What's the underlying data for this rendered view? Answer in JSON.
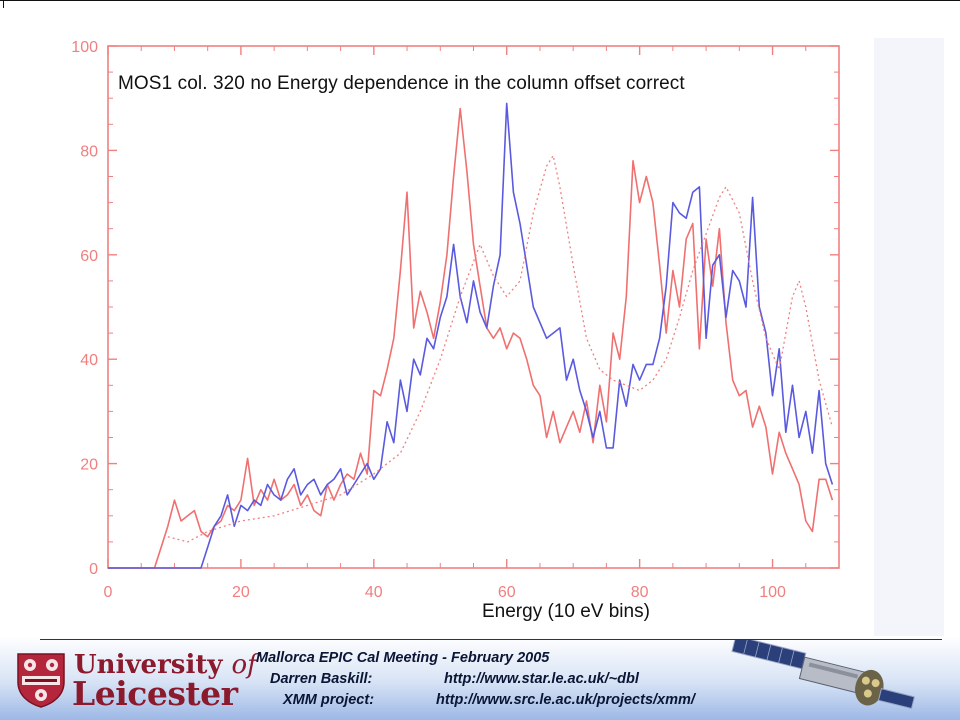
{
  "chart_data": {
    "type": "line",
    "title": "MOS1 col. 320 no Energy dependence in the column offset correct",
    "xlabel": "Energy (10 eV bins)",
    "ylabel": "",
    "xlim": [
      0,
      110
    ],
    "ylim": [
      0,
      100
    ],
    "x_ticks": [
      0,
      20,
      40,
      60,
      80,
      100
    ],
    "y_ticks": [
      0,
      20,
      40,
      60,
      80,
      100
    ],
    "grid": false,
    "legend": "none",
    "series": [
      {
        "color": "#f07070",
        "style": "solid",
        "points": [
          [
            0,
            0
          ],
          [
            7,
            0
          ],
          [
            8,
            4
          ],
          [
            9,
            8
          ],
          [
            10,
            13
          ],
          [
            11,
            9
          ],
          [
            12,
            10
          ],
          [
            13,
            11
          ],
          [
            14,
            7
          ],
          [
            15,
            6
          ],
          [
            16,
            8
          ],
          [
            17,
            9
          ],
          [
            18,
            12
          ],
          [
            19,
            11
          ],
          [
            20,
            13
          ],
          [
            21,
            21
          ],
          [
            22,
            12
          ],
          [
            23,
            15
          ],
          [
            24,
            13
          ],
          [
            25,
            17
          ],
          [
            26,
            13
          ],
          [
            27,
            14
          ],
          [
            28,
            16
          ],
          [
            29,
            12
          ],
          [
            30,
            14
          ],
          [
            31,
            11
          ],
          [
            32,
            10
          ],
          [
            33,
            16
          ],
          [
            34,
            13
          ],
          [
            35,
            16
          ],
          [
            36,
            18
          ],
          [
            37,
            17
          ],
          [
            38,
            22
          ],
          [
            39,
            18
          ],
          [
            40,
            34
          ],
          [
            41,
            33
          ],
          [
            42,
            38
          ],
          [
            43,
            44
          ],
          [
            44,
            57
          ],
          [
            45,
            72
          ],
          [
            46,
            46
          ],
          [
            47,
            53
          ],
          [
            48,
            49
          ],
          [
            49,
            44
          ],
          [
            50,
            51
          ],
          [
            51,
            60
          ],
          [
            52,
            75
          ],
          [
            53,
            88
          ],
          [
            54,
            76
          ],
          [
            55,
            62
          ],
          [
            56,
            54
          ],
          [
            57,
            46
          ],
          [
            58,
            44
          ],
          [
            59,
            46
          ],
          [
            60,
            42
          ],
          [
            61,
            45
          ],
          [
            62,
            44
          ],
          [
            63,
            40
          ],
          [
            64,
            35
          ],
          [
            65,
            33
          ],
          [
            66,
            25
          ],
          [
            67,
            30
          ],
          [
            68,
            24
          ],
          [
            69,
            27
          ],
          [
            70,
            30
          ],
          [
            71,
            26
          ],
          [
            72,
            32
          ],
          [
            73,
            24
          ],
          [
            74,
            35
          ],
          [
            75,
            28
          ],
          [
            76,
            45
          ],
          [
            77,
            40
          ],
          [
            78,
            52
          ],
          [
            79,
            78
          ],
          [
            80,
            70
          ],
          [
            81,
            75
          ],
          [
            82,
            70
          ],
          [
            83,
            58
          ],
          [
            84,
            45
          ],
          [
            85,
            57
          ],
          [
            86,
            50
          ],
          [
            87,
            63
          ],
          [
            88,
            66
          ],
          [
            89,
            42
          ],
          [
            90,
            63
          ],
          [
            91,
            54
          ],
          [
            92,
            65
          ],
          [
            93,
            47
          ],
          [
            94,
            36
          ],
          [
            95,
            33
          ],
          [
            96,
            34
          ],
          [
            97,
            27
          ],
          [
            98,
            31
          ],
          [
            99,
            27
          ],
          [
            100,
            18
          ],
          [
            101,
            26
          ],
          [
            102,
            22
          ],
          [
            103,
            19
          ],
          [
            104,
            16
          ],
          [
            105,
            9
          ],
          [
            106,
            7
          ],
          [
            107,
            17
          ],
          [
            108,
            17
          ],
          [
            109,
            13
          ]
        ]
      },
      {
        "color": "#5a5ae0",
        "style": "solid",
        "points": [
          [
            0,
            0
          ],
          [
            14,
            0
          ],
          [
            15,
            4
          ],
          [
            16,
            8
          ],
          [
            17,
            10
          ],
          [
            18,
            14
          ],
          [
            19,
            8
          ],
          [
            20,
            12
          ],
          [
            21,
            11
          ],
          [
            22,
            13
          ],
          [
            23,
            12
          ],
          [
            24,
            16
          ],
          [
            25,
            14
          ],
          [
            26,
            13
          ],
          [
            27,
            17
          ],
          [
            28,
            19
          ],
          [
            29,
            14
          ],
          [
            30,
            16
          ],
          [
            31,
            17
          ],
          [
            32,
            14
          ],
          [
            33,
            16
          ],
          [
            34,
            17
          ],
          [
            35,
            19
          ],
          [
            36,
            14
          ],
          [
            37,
            16
          ],
          [
            38,
            18
          ],
          [
            39,
            20
          ],
          [
            40,
            17
          ],
          [
            41,
            19
          ],
          [
            42,
            28
          ],
          [
            43,
            24
          ],
          [
            44,
            36
          ],
          [
            45,
            30
          ],
          [
            46,
            40
          ],
          [
            47,
            37
          ],
          [
            48,
            44
          ],
          [
            49,
            42
          ],
          [
            50,
            48
          ],
          [
            51,
            52
          ],
          [
            52,
            62
          ],
          [
            53,
            52
          ],
          [
            54,
            47
          ],
          [
            55,
            55
          ],
          [
            56,
            49
          ],
          [
            57,
            46
          ],
          [
            58,
            54
          ],
          [
            59,
            60
          ],
          [
            60,
            89
          ],
          [
            61,
            72
          ],
          [
            62,
            66
          ],
          [
            63,
            58
          ],
          [
            64,
            50
          ],
          [
            65,
            47
          ],
          [
            66,
            44
          ],
          [
            67,
            45
          ],
          [
            68,
            46
          ],
          [
            69,
            36
          ],
          [
            70,
            40
          ],
          [
            71,
            34
          ],
          [
            72,
            30
          ],
          [
            73,
            25
          ],
          [
            74,
            30
          ],
          [
            75,
            23
          ],
          [
            76,
            23
          ],
          [
            77,
            36
          ],
          [
            78,
            31
          ],
          [
            79,
            39
          ],
          [
            80,
            36
          ],
          [
            81,
            39
          ],
          [
            82,
            39
          ],
          [
            83,
            44
          ],
          [
            84,
            54
          ],
          [
            85,
            70
          ],
          [
            86,
            68
          ],
          [
            87,
            67
          ],
          [
            88,
            72
          ],
          [
            89,
            73
          ],
          [
            90,
            44
          ],
          [
            91,
            58
          ],
          [
            92,
            60
          ],
          [
            93,
            48
          ],
          [
            94,
            57
          ],
          [
            95,
            55
          ],
          [
            96,
            50
          ],
          [
            97,
            71
          ],
          [
            98,
            50
          ],
          [
            99,
            45
          ],
          [
            100,
            33
          ],
          [
            101,
            42
          ],
          [
            102,
            26
          ],
          [
            103,
            35
          ],
          [
            104,
            25
          ],
          [
            105,
            30
          ],
          [
            106,
            22
          ],
          [
            107,
            34
          ],
          [
            108,
            20
          ],
          [
            109,
            16
          ]
        ]
      },
      {
        "color": "#f08080",
        "style": "dotted",
        "points": [
          [
            9,
            6
          ],
          [
            12,
            5
          ],
          [
            15,
            7
          ],
          [
            20,
            9
          ],
          [
            25,
            10
          ],
          [
            30,
            12
          ],
          [
            35,
            14
          ],
          [
            40,
            18
          ],
          [
            44,
            22
          ],
          [
            47,
            30
          ],
          [
            50,
            40
          ],
          [
            53,
            52
          ],
          [
            56,
            62
          ],
          [
            58,
            56
          ],
          [
            60,
            52
          ],
          [
            62,
            55
          ],
          [
            64,
            68
          ],
          [
            66,
            77
          ],
          [
            67,
            79
          ],
          [
            68,
            73
          ],
          [
            70,
            58
          ],
          [
            72,
            44
          ],
          [
            74,
            38
          ],
          [
            76,
            36
          ],
          [
            78,
            35
          ],
          [
            80,
            34
          ],
          [
            82,
            36
          ],
          [
            84,
            40
          ],
          [
            86,
            48
          ],
          [
            88,
            57
          ],
          [
            90,
            64
          ],
          [
            92,
            71
          ],
          [
            93,
            73
          ],
          [
            95,
            68
          ],
          [
            97,
            55
          ],
          [
            99,
            44
          ],
          [
            101,
            38
          ],
          [
            102,
            45
          ],
          [
            103,
            52
          ],
          [
            104,
            55
          ],
          [
            105,
            50
          ],
          [
            107,
            36
          ],
          [
            109,
            27
          ]
        ]
      }
    ]
  },
  "footer": {
    "logo_line1_a": "University",
    "logo_line1_b": "of",
    "logo_line2": "Leicester",
    "meeting": "Mallorca EPIC Cal Meeting - February 2005",
    "author_label": "Darren Baskill:",
    "author_url": "http://www.star.le.ac.uk/~dbl",
    "project_label": "XMM project:",
    "project_url": "http://www.src.le.ac.uk/projects/xmm/"
  },
  "colors": {
    "axis": "#f08080",
    "logo": "#8b1a2d",
    "footer_text": "#0b1535"
  }
}
